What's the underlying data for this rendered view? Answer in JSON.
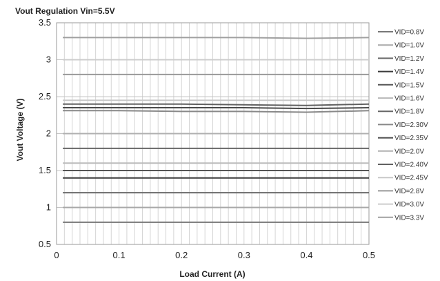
{
  "chart_data": {
    "type": "line",
    "title": "Vout Regulation Vin=5.5V",
    "xlabel": "Load Current (A)",
    "ylabel": "Vout Voltage (V)",
    "xlim": [
      0,
      0.5
    ],
    "ylim": [
      0.5,
      3.5
    ],
    "x_ticks": [
      "0",
      "0.1",
      "0.2",
      "0.3",
      "0.4",
      "0.5"
    ],
    "y_ticks": [
      "0.5",
      "1",
      "1.5",
      "2",
      "2.5",
      "3",
      "3.5"
    ],
    "grid": true,
    "legend_position": "right",
    "x": [
      0.01,
      0.1,
      0.2,
      0.3,
      0.4,
      0.5
    ],
    "series": [
      {
        "name": "VID=0.8V",
        "color": "#777777",
        "values": [
          0.8,
          0.8,
          0.8,
          0.8,
          0.8,
          0.8
        ]
      },
      {
        "name": "VID=1.0V",
        "color": "#a8a8a8",
        "values": [
          1.0,
          1.0,
          1.0,
          1.0,
          1.0,
          1.0
        ]
      },
      {
        "name": "VID=1.2V",
        "color": "#6a6a6a",
        "values": [
          1.2,
          1.2,
          1.2,
          1.2,
          1.2,
          1.2
        ]
      },
      {
        "name": "VID=1.4V",
        "color": "#3a3a3a",
        "values": [
          1.4,
          1.4,
          1.4,
          1.4,
          1.4,
          1.4
        ]
      },
      {
        "name": "VID=1.5V",
        "color": "#555555",
        "values": [
          1.5,
          1.5,
          1.5,
          1.5,
          1.5,
          1.5
        ]
      },
      {
        "name": "VID=1.6V",
        "color": "#bbbbbb",
        "values": [
          1.6,
          1.6,
          1.6,
          1.6,
          1.6,
          1.6
        ]
      },
      {
        "name": "VID=1.8V",
        "color": "#666666",
        "values": [
          1.8,
          1.8,
          1.8,
          1.8,
          1.8,
          1.8
        ]
      },
      {
        "name": "VID=2.30V",
        "color": "#888888",
        "values": [
          2.31,
          2.31,
          2.3,
          2.3,
          2.29,
          2.31
        ]
      },
      {
        "name": "VID=2.35V",
        "color": "#4a4a4a",
        "values": [
          2.35,
          2.35,
          2.35,
          2.35,
          2.34,
          2.35
        ]
      },
      {
        "name": "VID=2.0V",
        "color": "#b0b0b0",
        "values": [
          2.0,
          2.0,
          2.0,
          2.0,
          2.0,
          2.0
        ]
      },
      {
        "name": "VID=2.40V",
        "color": "#606060",
        "values": [
          2.4,
          2.4,
          2.4,
          2.39,
          2.38,
          2.4
        ]
      },
      {
        "name": "VID=2.45V",
        "color": "#c8c8c8",
        "values": [
          2.45,
          2.45,
          2.45,
          2.45,
          2.45,
          2.45
        ]
      },
      {
        "name": "VID=2.8V",
        "color": "#999999",
        "values": [
          2.8,
          2.8,
          2.8,
          2.8,
          2.8,
          2.8
        ]
      },
      {
        "name": "VID=3.0V",
        "color": "#cccccc",
        "values": [
          3.0,
          3.0,
          3.0,
          3.0,
          3.0,
          3.0
        ]
      },
      {
        "name": "VID=3.3V",
        "color": "#a0a0a0",
        "values": [
          3.3,
          3.3,
          3.3,
          3.3,
          3.29,
          3.3
        ]
      }
    ]
  }
}
